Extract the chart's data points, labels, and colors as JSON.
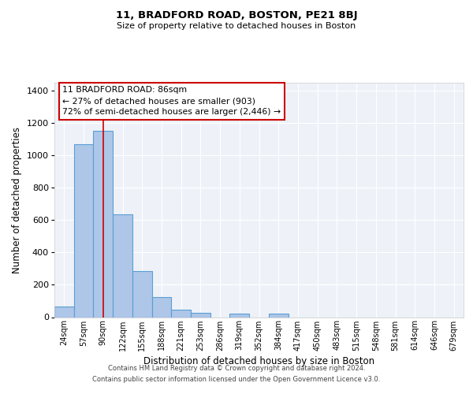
{
  "title": "11, BRADFORD ROAD, BOSTON, PE21 8BJ",
  "subtitle": "Size of property relative to detached houses in Boston",
  "xlabel": "Distribution of detached houses by size in Boston",
  "ylabel": "Number of detached properties",
  "bar_labels": [
    "24sqm",
    "57sqm",
    "90sqm",
    "122sqm",
    "155sqm",
    "188sqm",
    "221sqm",
    "253sqm",
    "286sqm",
    "319sqm",
    "352sqm",
    "384sqm",
    "417sqm",
    "450sqm",
    "483sqm",
    "515sqm",
    "548sqm",
    "581sqm",
    "614sqm",
    "646sqm",
    "679sqm"
  ],
  "bar_values": [
    65,
    1070,
    1155,
    635,
    285,
    125,
    48,
    25,
    0,
    20,
    0,
    20,
    0,
    0,
    0,
    0,
    0,
    0,
    0,
    0,
    0
  ],
  "bar_color": "#aec6e8",
  "bar_edge_color": "#5a9fd4",
  "bar_edge_width": 0.8,
  "vline_x": 2,
  "vline_color": "#cc0000",
  "ylim": [
    0,
    1450
  ],
  "yticks": [
    0,
    200,
    400,
    600,
    800,
    1000,
    1200,
    1400
  ],
  "annotation_line1": "11 BRADFORD ROAD: 86sqm",
  "annotation_line2": "← 27% of detached houses are smaller (903)",
  "annotation_line3": "72% of semi-detached houses are larger (2,446) →",
  "footer_line1": "Contains HM Land Registry data © Crown copyright and database right 2024.",
  "footer_line2": "Contains public sector information licensed under the Open Government Licence v3.0.",
  "background_color": "#eef2f8",
  "grid_color": "#ffffff",
  "fig_background": "#ffffff"
}
